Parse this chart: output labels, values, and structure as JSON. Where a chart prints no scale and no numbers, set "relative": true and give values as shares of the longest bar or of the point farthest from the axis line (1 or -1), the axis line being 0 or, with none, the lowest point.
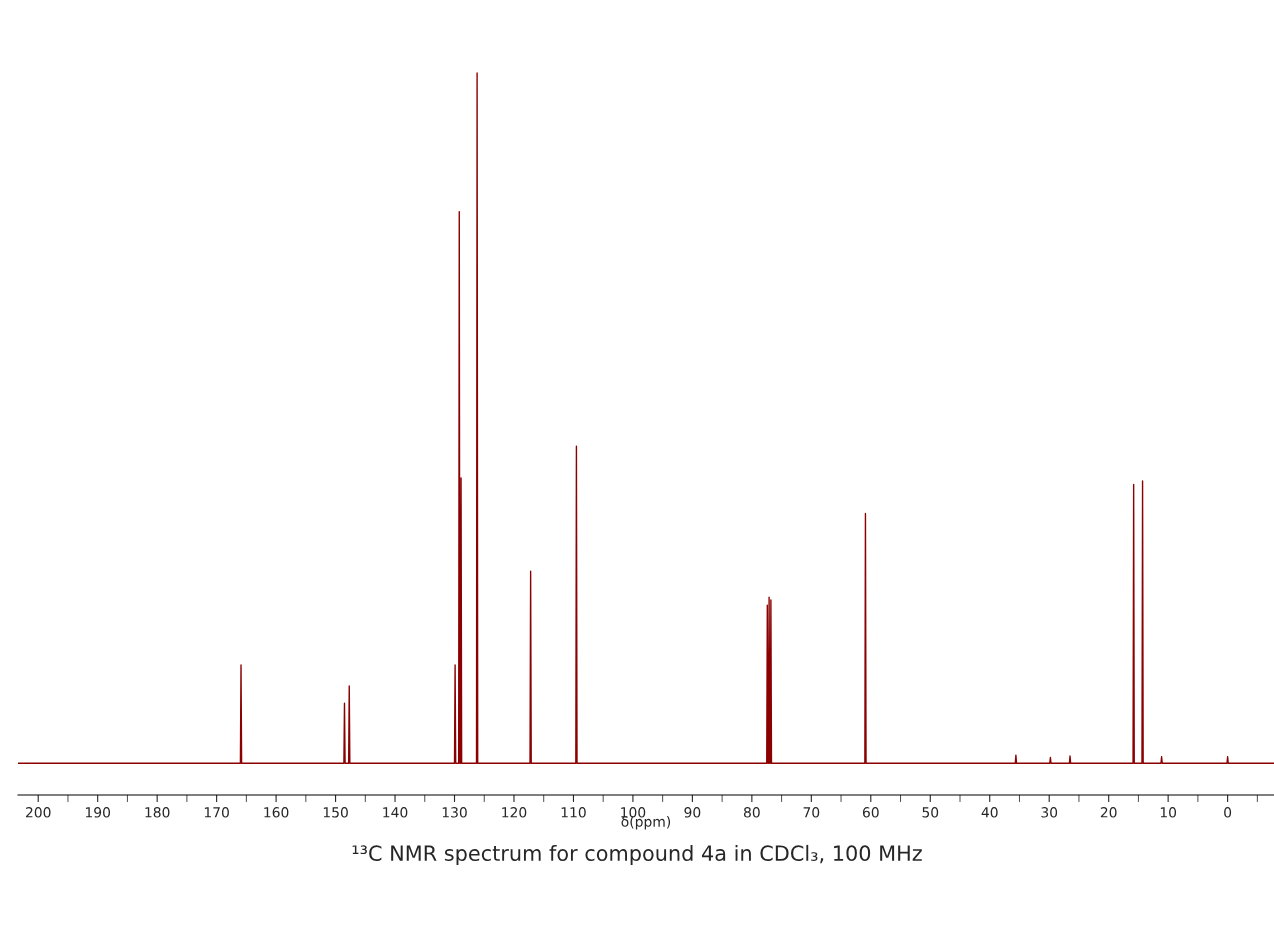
{
  "chart_data": {
    "type": "line",
    "relative": true,
    "title": "¹³C NMR spectrum for compound 4a in CDCl₃, 100 MHz",
    "xlabel": "δ(ppm)",
    "xlim": [
      203.4,
      -7.8
    ],
    "xticks": [
      200,
      {
        "value": 195,
        "label": null
      },
      190,
      {
        "value": 185,
        "label": null
      },
      180,
      {
        "value": 175,
        "label": null
      },
      170,
      {
        "value": 165,
        "label": null
      },
      160,
      {
        "value": 155,
        "label": null
      },
      150,
      {
        "value": 145,
        "label": null
      },
      140,
      {
        "value": 135,
        "label": null
      },
      130,
      {
        "value": 125,
        "label": null
      },
      120,
      {
        "value": 115,
        "label": null
      },
      110,
      {
        "value": 105,
        "label": null
      },
      100,
      {
        "value": 95,
        "label": null
      },
      90,
      {
        "value": 85,
        "label": null
      },
      80,
      {
        "value": 75,
        "label": null
      },
      70,
      {
        "value": 65,
        "label": null
      },
      60,
      {
        "value": 55,
        "label": null
      },
      50,
      {
        "value": 45,
        "label": null
      },
      40,
      {
        "value": 35,
        "label": null
      },
      30,
      {
        "value": 25,
        "label": null
      },
      20,
      {
        "value": 15,
        "label": null
      },
      10,
      {
        "value": 5,
        "label": null
      },
      0,
      {
        "value": -5,
        "label": null
      }
    ],
    "tick_labels": "x",
    "grid": false,
    "series": [
      {
        "color": "#8b0000",
        "x": [
          203.4,
          166.0,
          165.9,
          165.8,
          148.6,
          148.5,
          148.4,
          147.8,
          147.7,
          147.6,
          130.0,
          129.9,
          129.8,
          129.3,
          129.2,
          129.1,
          129.0,
          128.9,
          128.8,
          126.3,
          126.2,
          126.1,
          117.3,
          117.2,
          117.1,
          109.6,
          109.5,
          109.4,
          77.5,
          77.4,
          77.3,
          77.2,
          77.1,
          77.0,
          76.9,
          76.8,
          76.7,
          61.0,
          60.9,
          60.8,
          35.7,
          35.6,
          35.5,
          29.9,
          29.8,
          29.7,
          26.6,
          26.5,
          26.4,
          15.9,
          15.8,
          15.7,
          14.4,
          14.3,
          14.2,
          11.2,
          11.1,
          11.0,
          0.1,
          0.0,
          -0.1,
          -7.8
        ],
        "values": [
          0.044,
          0.044,
          0.18,
          0.044,
          0.044,
          0.127,
          0.044,
          0.044,
          0.151,
          0.044,
          0.044,
          0.18,
          0.044,
          0.044,
          0.808,
          0.044,
          0.044,
          0.439,
          0.044,
          0.044,
          1,
          0.044,
          0.044,
          0.31,
          0.044,
          0.044,
          0.483,
          0.044,
          0.044,
          0.263,
          0.044,
          0.044,
          0.274,
          0.044,
          0.044,
          0.27,
          0.044,
          0.044,
          0.39,
          0.044,
          0.044,
          0.055,
          0.044,
          0.044,
          0.052,
          0.044,
          0.044,
          0.054,
          0.044,
          0.044,
          0.43,
          0.044,
          0.044,
          0.435,
          0.044,
          0.044,
          0.053,
          0.044,
          0.044,
          0.053,
          0.044,
          0.044
        ]
      }
    ]
  }
}
